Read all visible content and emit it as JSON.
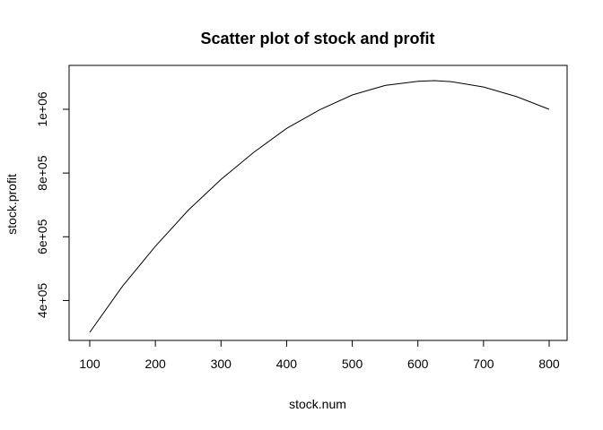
{
  "chart_data": {
    "type": "line",
    "title": "Scatter plot of stock and profit",
    "xlabel": "stock.num",
    "ylabel": "stock.profit",
    "xlim": [
      100,
      800
    ],
    "ylim": [
      300000,
      1090000
    ],
    "xticks": [
      100,
      200,
      300,
      400,
      500,
      600,
      700,
      800
    ],
    "xtick_labels": [
      "100",
      "200",
      "300",
      "400",
      "500",
      "600",
      "700",
      "800"
    ],
    "yticks": [
      400000,
      600000,
      800000,
      1000000
    ],
    "ytick_labels": [
      "4e+05",
      "6e+05",
      "8e+05",
      "1e+06"
    ],
    "grid": false,
    "series": [
      {
        "x": [
          100,
          150,
          200,
          250,
          300,
          350,
          400,
          450,
          500,
          550,
          600,
          625,
          650,
          700,
          750,
          800
        ],
        "y": [
          300000,
          445000,
          570000,
          683000,
          780000,
          865000,
          940000,
          998000,
          1045000,
          1075000,
          1088000,
          1090000,
          1087000,
          1070000,
          1040000,
          1000000
        ]
      }
    ]
  }
}
